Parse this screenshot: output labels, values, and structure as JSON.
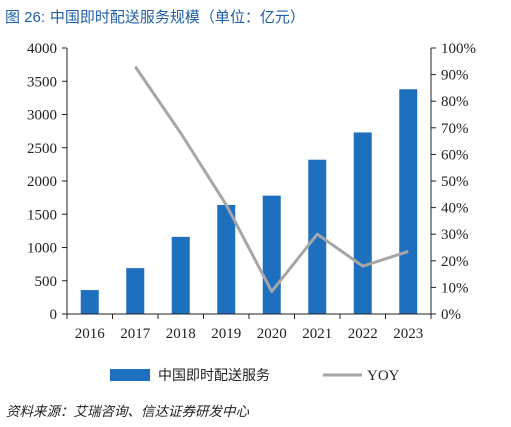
{
  "figure": {
    "label": "图 26:",
    "title": "中国即时配送服务规模（单位：亿元）",
    "source": "资料来源：艾瑞咨询、信达证券研发中心"
  },
  "colors": {
    "title": "#1f5fa8",
    "bar": "#1f6fbf",
    "line": "#a6a6a6",
    "axis": "#222222"
  },
  "chart_data": {
    "type": "bar",
    "categories": [
      "2016",
      "2017",
      "2018",
      "2019",
      "2020",
      "2021",
      "2022",
      "2023"
    ],
    "series": [
      {
        "name": "中国即时配送服务",
        "type": "bar",
        "axis": "left",
        "values": [
          360,
          690,
          1160,
          1640,
          1780,
          2320,
          2730,
          3380
        ]
      },
      {
        "name": "YOY",
        "type": "line",
        "axis": "right",
        "values": [
          null,
          0.93,
          0.68,
          0.41,
          0.085,
          0.3,
          0.18,
          0.235
        ]
      }
    ],
    "y_left": {
      "min": 0,
      "max": 4000,
      "ticks": [
        0,
        500,
        1000,
        1500,
        2000,
        2500,
        3000,
        3500,
        4000
      ]
    },
    "y_right": {
      "min": 0,
      "max": 1,
      "ticks": [
        "0%",
        "10%",
        "20%",
        "30%",
        "40%",
        "50%",
        "60%",
        "70%",
        "80%",
        "90%",
        "100%"
      ]
    },
    "grid": false,
    "legend_position": "bottom"
  }
}
